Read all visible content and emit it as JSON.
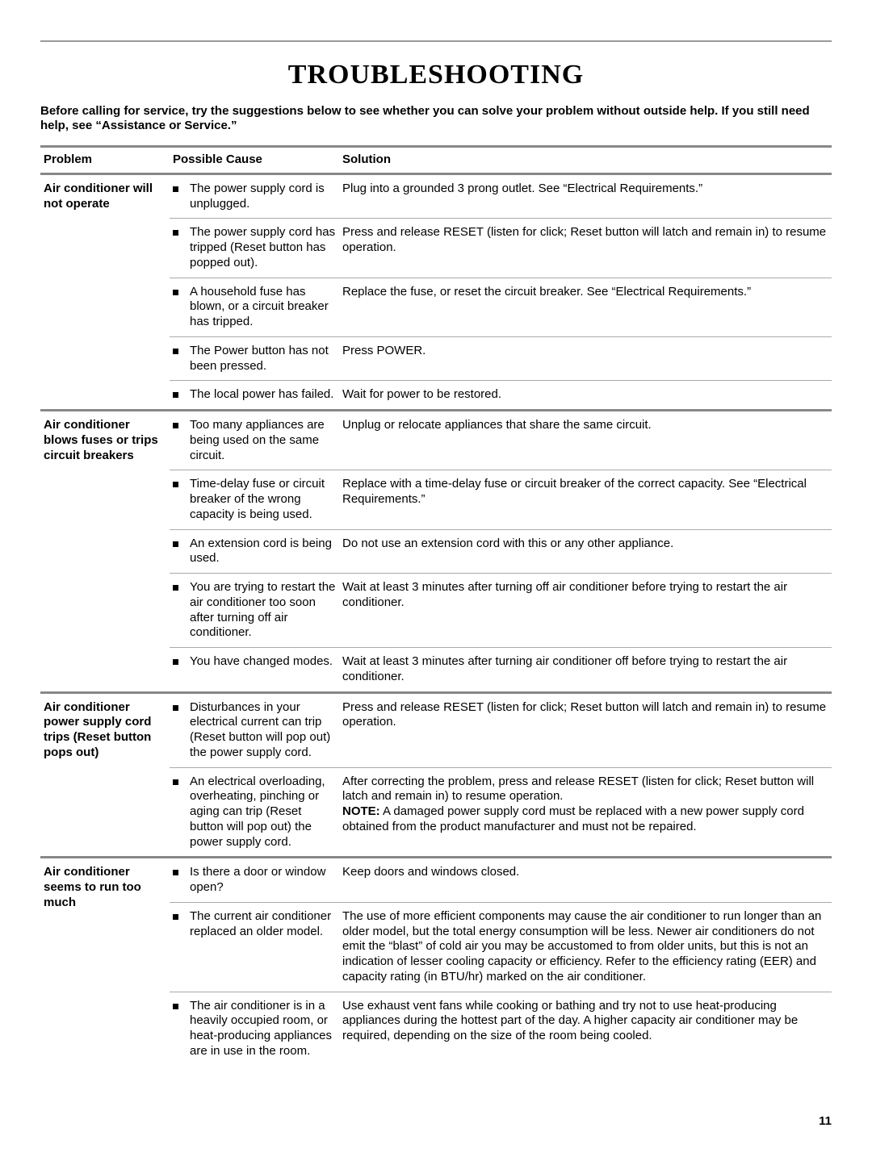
{
  "title": "TROUBLESHOOTING",
  "intro": "Before calling for service, try the suggestions below to see whether you can solve your problem without outside help. If you still need help, see “Assistance or Service.”",
  "headers": {
    "problem": "Problem",
    "cause": "Possible Cause",
    "solution": "Solution"
  },
  "page_number": "11",
  "groups": [
    {
      "problem": "Air conditioner will not operate",
      "rows": [
        {
          "cause": "The power supply cord is unplugged.",
          "solution": "Plug into a grounded 3 prong outlet. See “Electrical Requirements.”"
        },
        {
          "cause": "The power supply cord has tripped (Reset button has popped out).",
          "solution": "Press and release RESET (listen for click; Reset button will latch and remain in) to resume operation."
        },
        {
          "cause": "A household fuse has blown, or a circuit breaker has tripped.",
          "solution": "Replace the fuse, or reset the circuit breaker. See “Electrical Requirements.”"
        },
        {
          "cause": "The Power button has not been pressed.",
          "solution": "Press POWER."
        },
        {
          "cause": "The local power has failed.",
          "solution": "Wait for power to be restored."
        }
      ]
    },
    {
      "problem": "Air conditioner blows fuses or trips circuit breakers",
      "rows": [
        {
          "cause": "Too many appliances are being used on the same circuit.",
          "solution": "Unplug or relocate appliances that share the same circuit."
        },
        {
          "cause": "Time-delay fuse or circuit breaker of the wrong capacity is being used.",
          "solution": "Replace with a time-delay fuse or circuit breaker of the correct capacity. See “Electrical Requirements.”"
        },
        {
          "cause": "An extension cord is being used.",
          "solution": "Do not use an extension cord with this or any other appliance."
        },
        {
          "cause": "You are trying to restart the air conditioner too soon after turning off air conditioner.",
          "solution": "Wait at least 3 minutes after turning off air conditioner before trying to restart the air conditioner."
        },
        {
          "cause": "You have changed modes.",
          "solution": "Wait at least 3 minutes after turning air conditioner off before trying to restart the air conditioner."
        }
      ]
    },
    {
      "problem": "Air conditioner power supply cord trips (Reset button pops out)",
      "rows": [
        {
          "cause": "Disturbances in your electrical current can trip (Reset button will pop out) the power supply cord.",
          "solution": "Press and release RESET (listen for click; Reset button will latch and remain in) to resume operation."
        },
        {
          "cause": "An electrical overloading, overheating, pinching or aging can trip (Reset button will pop out) the power supply cord.",
          "solution": "After correcting the problem, press and release RESET (listen for click; Reset button will latch and remain in) to resume operation.",
          "note_label": "NOTE:",
          "note": " A damaged power supply cord must be replaced with a new power supply cord obtained from the product manufacturer and must not be repaired."
        }
      ]
    },
    {
      "problem": "Air conditioner seems to run too much",
      "rows": [
        {
          "cause": "Is there a door or window open?",
          "solution": "Keep doors and windows closed."
        },
        {
          "cause": "The current air conditioner replaced an older model.",
          "solution": "The use of more efficient components may cause the air conditioner to run longer than an older model, but the total energy consumption will be less. Newer air conditioners do not emit the “blast” of cold air you may be accustomed to from older units, but this is not an indication of lesser cooling capacity or efficiency. Refer to the efficiency rating (EER) and capacity rating (in BTU/hr) marked on the air conditioner."
        },
        {
          "cause": "The air conditioner is in a heavily occupied room, or heat-producing appliances are in use in the room.",
          "solution": "Use exhaust vent fans while cooking or bathing and try not to use heat-producing appliances during the hottest part of the day. A higher capacity air conditioner may be required, depending on the size of the room being cooled."
        }
      ]
    }
  ]
}
